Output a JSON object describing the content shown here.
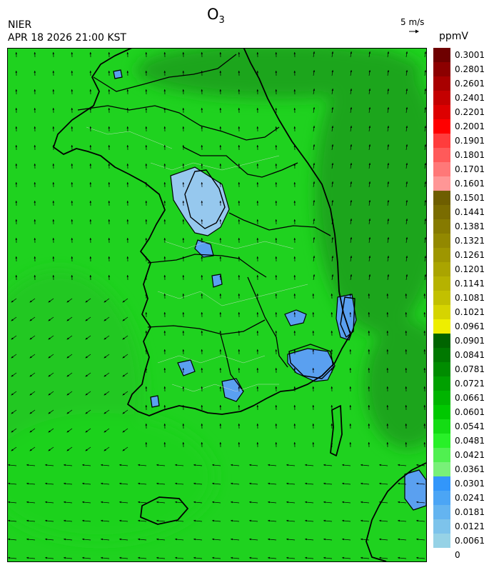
{
  "header": {
    "title": "O",
    "title_sub": "3",
    "organization": "NIER",
    "timestamp": "APR 18 2026 21:00 KST",
    "wind_reference": "5 m/s",
    "unit": "ppmV"
  },
  "colorbar": {
    "labels": [
      "0.3001",
      "0.2801",
      "0.2601",
      "0.2401",
      "0.2201",
      "0.2001",
      "0.1901",
      "0.1801",
      "0.1701",
      "0.1601",
      "0.1501",
      "0.1441",
      "0.1381",
      "0.1321",
      "0.1261",
      "0.1201",
      "0.1141",
      "0.1081",
      "0.1021",
      "0.0961",
      "0.0901",
      "0.0841",
      "0.0781",
      "0.0721",
      "0.0661",
      "0.0601",
      "0.0541",
      "0.0481",
      "0.0421",
      "0.0361",
      "0.0301",
      "0.0241",
      "0.0181",
      "0.0121",
      "0.0061",
      "0"
    ],
    "colors": [
      "#6e0000",
      "#8c0000",
      "#a80000",
      "#c40000",
      "#dd0000",
      "#ff0000",
      "#ff3c3c",
      "#ff5a5a",
      "#ff7878",
      "#ff9696",
      "#6e5e00",
      "#7a6c00",
      "#867a00",
      "#928800",
      "#9e9600",
      "#aaa400",
      "#b6b200",
      "#c2c000",
      "#d6d400",
      "#eeee00",
      "#006400",
      "#007800",
      "#008c00",
      "#00a000",
      "#00b400",
      "#00c800",
      "#14dc14",
      "#28f028",
      "#50f050",
      "#78f078",
      "#3296fa",
      "#4ba5f5",
      "#64b4f0",
      "#7dc3eb",
      "#96d2e6"
    ]
  },
  "map": {
    "background_color": "#1fd21f",
    "sea_color": "#22c822",
    "high_zone_color": "#1aa51a",
    "low_zone_color": "#96c8ee",
    "low_zone_deep_color": "#5aa0f0"
  }
}
